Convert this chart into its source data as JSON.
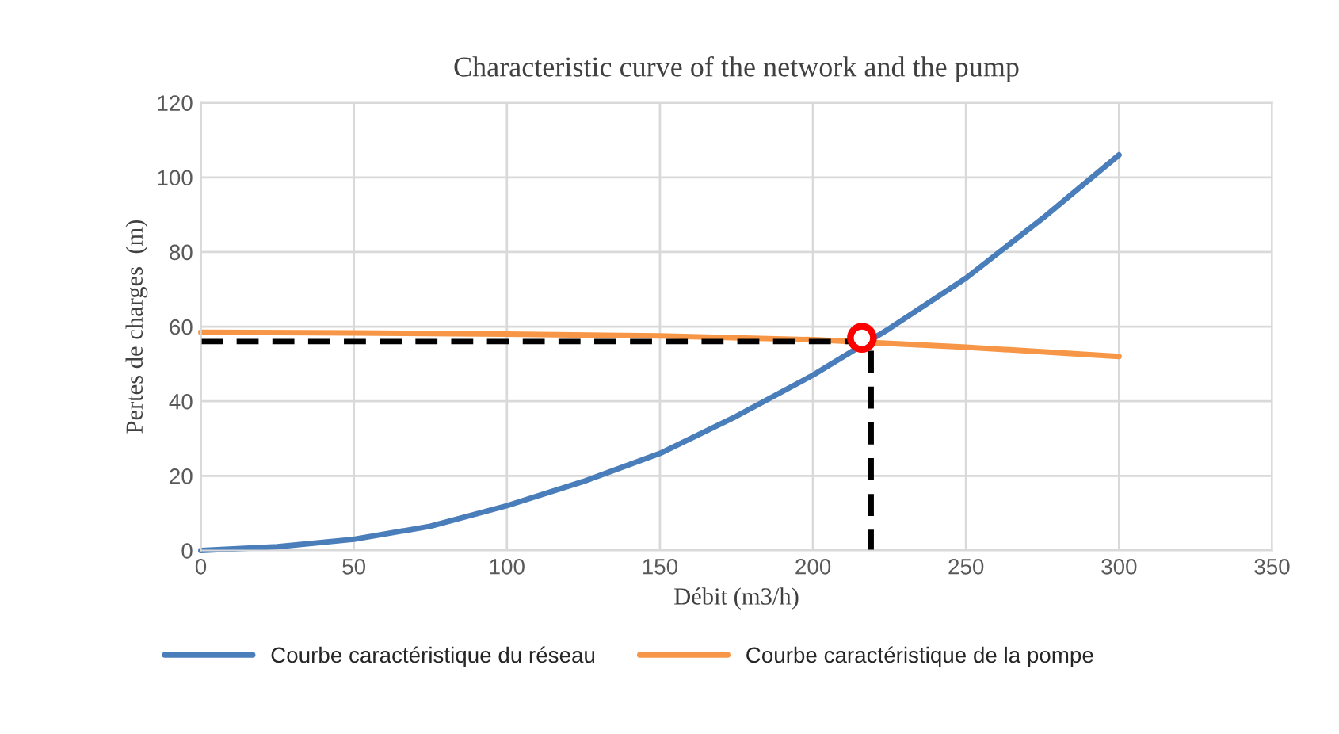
{
  "chart_data": {
    "type": "line",
    "title": "Characteristic curve of the network and the pump",
    "xlabel": "Débit (m3/h)",
    "ylabel": "Pertes de charges  (m)",
    "xlim": [
      0,
      350
    ],
    "xticks": [
      0,
      50,
      100,
      150,
      200,
      250,
      300,
      350
    ],
    "ylim": [
      0,
      120
    ],
    "yticks": [
      0,
      20,
      40,
      60,
      80,
      100,
      120
    ],
    "grid": true,
    "legend": "bottom",
    "marker": "none",
    "line_style": "solid",
    "series": [
      {
        "name": "Courbe caractéristique du réseau",
        "color": "#4a7ebb",
        "x": [
          0,
          25,
          50,
          75,
          100,
          125,
          150,
          175,
          200,
          225,
          250,
          275,
          300
        ],
        "values": [
          0,
          1,
          3,
          6.5,
          12,
          18.5,
          26,
          36,
          47,
          59.5,
          73,
          89,
          106
        ]
      },
      {
        "name": "Courbe caractéristique de la pompe",
        "color": "#f79646",
        "x": [
          0,
          50,
          100,
          150,
          200,
          250,
          300
        ],
        "values": [
          58.5,
          58.3,
          58,
          57.5,
          56.5,
          54.5,
          52
        ]
      },
      {
        "type": "line",
        "color": "#000000",
        "line_style": "dashed",
        "x": [
          0,
          219,
          219
        ],
        "values": [
          56,
          56,
          0
        ]
      },
      {
        "type": "scatter",
        "color": "#ff0000",
        "marker": "circle",
        "x": [
          216
        ],
        "values": [
          57
        ]
      }
    ]
  }
}
